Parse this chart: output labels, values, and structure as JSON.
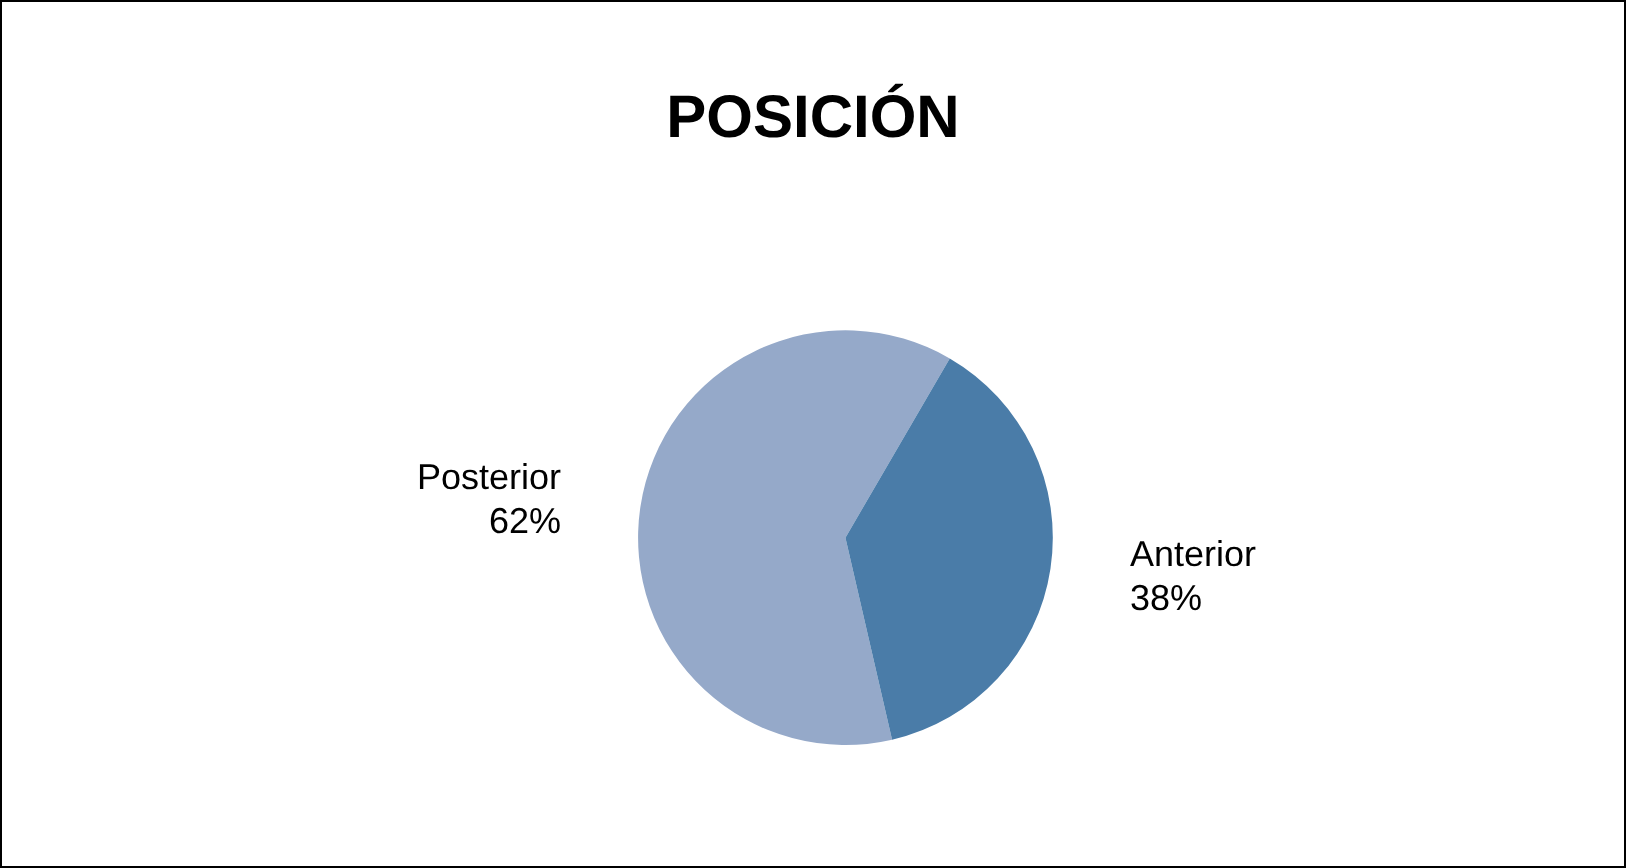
{
  "chart_data": {
    "type": "pie",
    "title": "POSICIÓN",
    "categories": [
      "Posterior",
      "Anterior"
    ],
    "values": [
      62,
      38
    ],
    "value_labels": [
      "62%",
      "38%"
    ],
    "colors": [
      "#95a9c9",
      "#4a7ca8"
    ],
    "legend": false
  }
}
